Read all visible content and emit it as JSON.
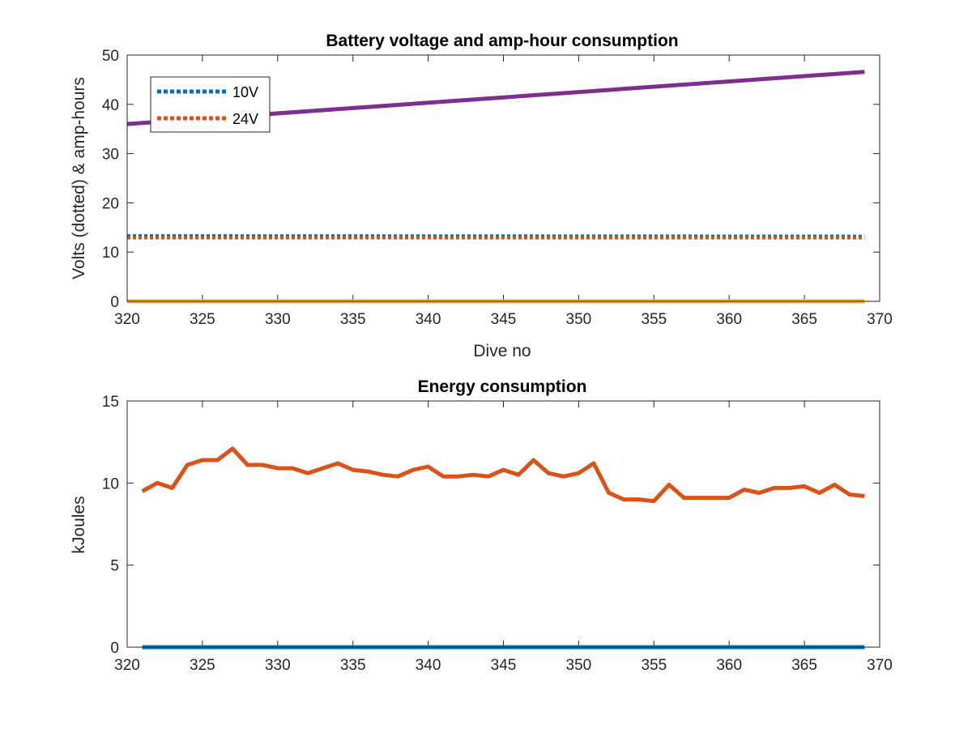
{
  "chart_data": [
    {
      "type": "line",
      "title": "Battery voltage and amp-hour consumption",
      "xlabel": "Dive no",
      "ylabel": "Volts (dotted) & amp-hours",
      "xlim": [
        320,
        370
      ],
      "ylim": [
        0,
        50
      ],
      "xticks": [
        320,
        325,
        330,
        335,
        340,
        345,
        350,
        355,
        360,
        365,
        370
      ],
      "yticks": [
        0,
        10,
        20,
        30,
        40,
        50
      ],
      "grid": false,
      "legend_position": "top-left",
      "series": [
        {
          "name": "10V",
          "style": "dotted",
          "color": "#0072BD",
          "x": [
            320,
            369
          ],
          "y": [
            13.3,
            13.2
          ]
        },
        {
          "name": "24V",
          "style": "dotted",
          "color": "#D95319",
          "x": [
            320,
            369
          ],
          "y": [
            12.9,
            12.9
          ]
        },
        {
          "style": "solid",
          "color": "#EDB120",
          "x": [
            320,
            369
          ],
          "y": [
            0,
            0
          ]
        },
        {
          "style": "solid",
          "color": "#7E2F8E",
          "x": [
            320,
            369
          ],
          "y": [
            36.0,
            46.6
          ]
        }
      ]
    },
    {
      "type": "line",
      "title": "Energy consumption",
      "xlabel": "",
      "ylabel": "kJoules",
      "xlim": [
        320,
        370
      ],
      "ylim": [
        0,
        15
      ],
      "xticks": [
        320,
        325,
        330,
        335,
        340,
        345,
        350,
        355,
        360,
        365,
        370
      ],
      "yticks": [
        0,
        5,
        10,
        15
      ],
      "grid": false,
      "series": [
        {
          "style": "solid",
          "color": "#0072BD",
          "x": [
            321,
            369
          ],
          "y": [
            0,
            0
          ]
        },
        {
          "style": "solid",
          "color": "#D95319",
          "x": [
            321,
            322,
            323,
            324,
            325,
            326,
            327,
            328,
            329,
            330,
            331,
            332,
            333,
            334,
            335,
            336,
            337,
            338,
            339,
            340,
            341,
            342,
            343,
            344,
            345,
            346,
            347,
            348,
            349,
            350,
            351,
            352,
            353,
            354,
            355,
            356,
            357,
            358,
            359,
            360,
            361,
            362,
            363,
            364,
            365,
            366,
            367,
            368,
            369
          ],
          "y": [
            9.5,
            10.0,
            9.7,
            11.1,
            11.4,
            11.4,
            12.1,
            11.1,
            11.1,
            10.9,
            10.9,
            10.6,
            10.9,
            11.2,
            10.8,
            10.7,
            10.5,
            10.4,
            10.8,
            11.0,
            10.4,
            10.4,
            10.5,
            10.4,
            10.8,
            10.5,
            11.4,
            10.6,
            10.4,
            10.6,
            11.2,
            9.4,
            9.0,
            9.0,
            8.9,
            9.9,
            9.1,
            9.1,
            9.1,
            9.1,
            9.6,
            9.4,
            9.7,
            9.7,
            9.8,
            9.4,
            9.9,
            9.3,
            9.2
          ]
        }
      ]
    }
  ]
}
